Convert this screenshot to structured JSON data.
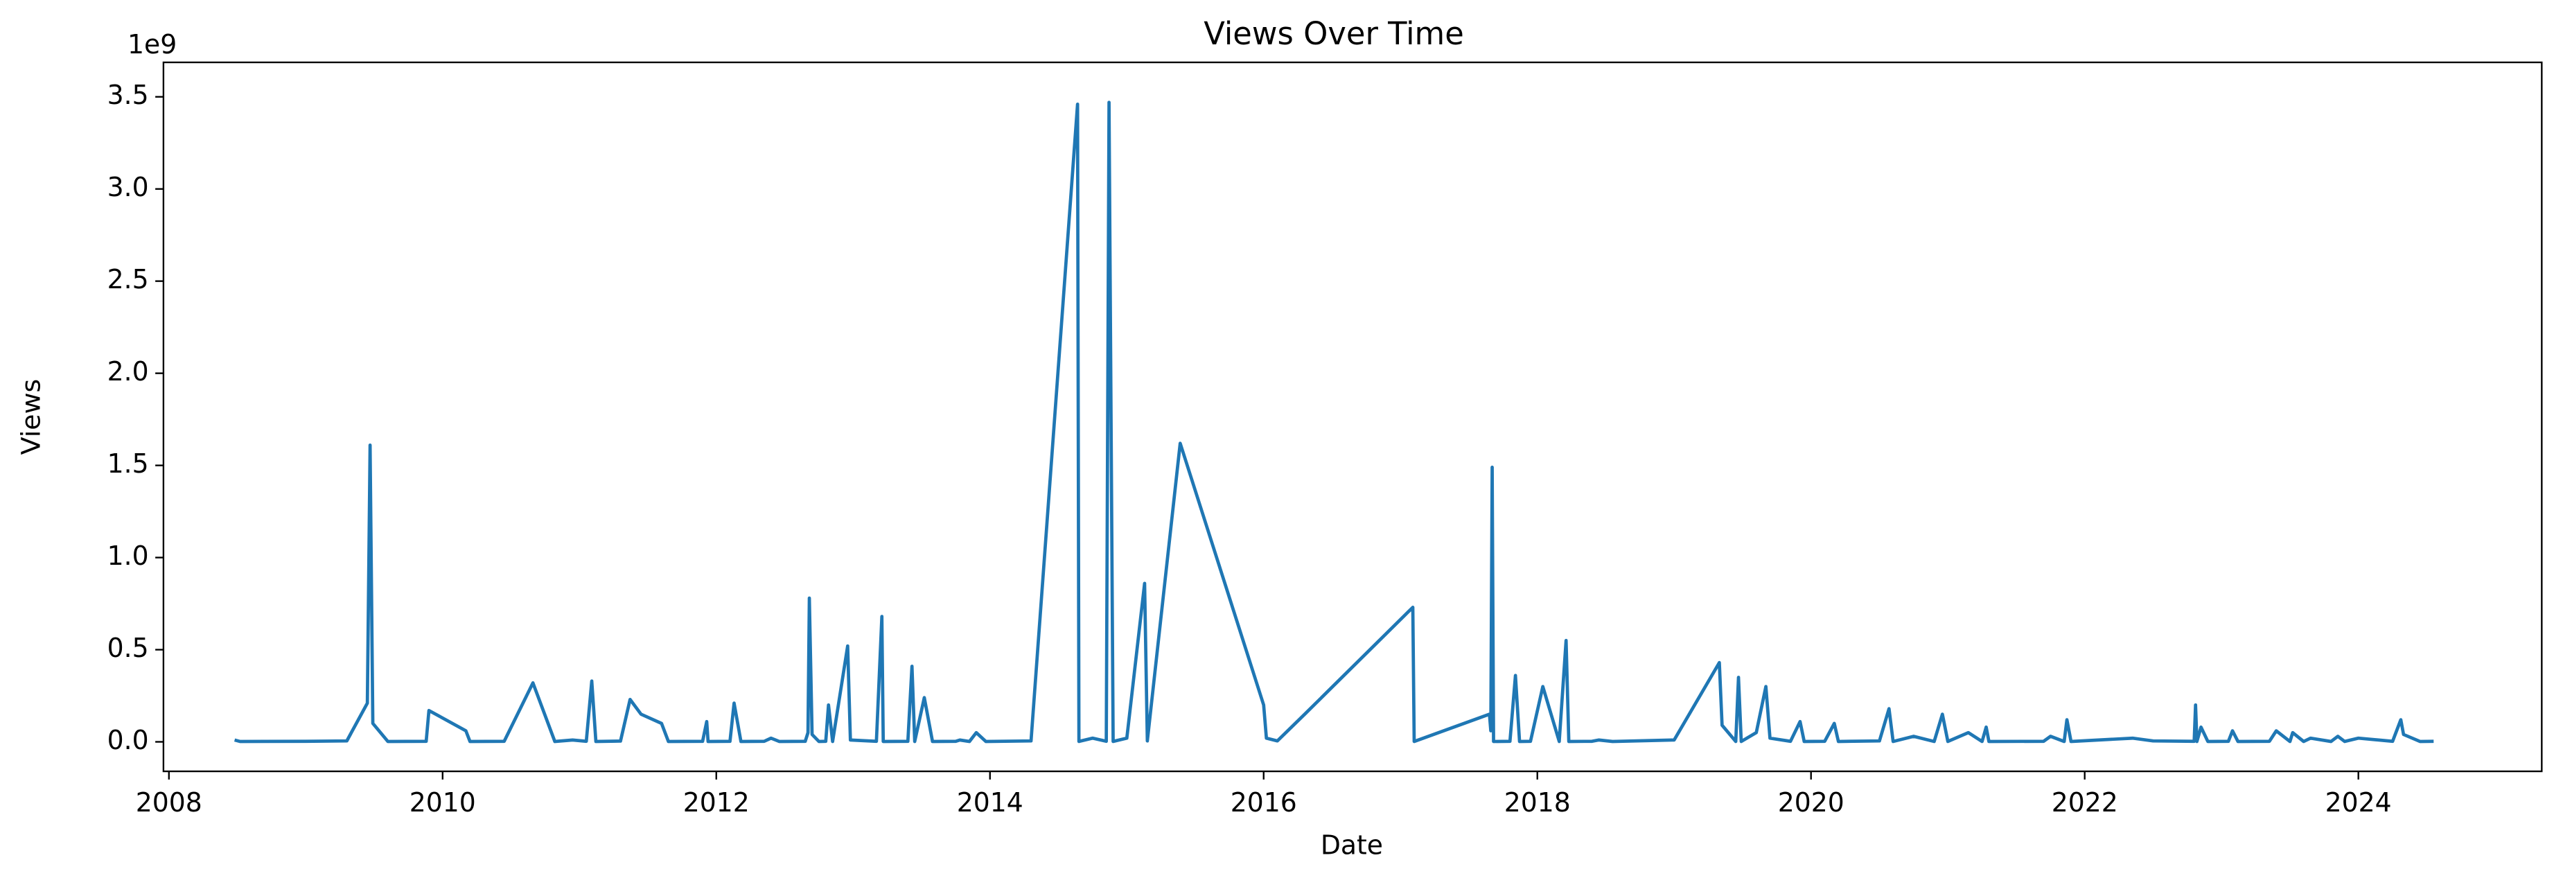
{
  "chart_data": {
    "type": "line",
    "title": "Views Over Time",
    "x_label": "Date",
    "y_label": "Views",
    "y_offset_label": "1e9",
    "color": "#1f77b4",
    "grid": false,
    "x": [
      2008.48,
      2008.52,
      2009.0,
      2009.3,
      2009.45,
      2009.47,
      2009.49,
      2009.6,
      2009.88,
      2009.9,
      2010.17,
      2010.2,
      2010.45,
      2010.66,
      2010.82,
      2010.95,
      2011.05,
      2011.09,
      2011.12,
      2011.3,
      2011.37,
      2011.45,
      2011.6,
      2011.65,
      2011.9,
      2011.93,
      2011.94,
      2012.1,
      2012.13,
      2012.18,
      2012.35,
      2012.4,
      2012.46,
      2012.65,
      2012.67,
      2012.68,
      2012.7,
      2012.75,
      2012.8,
      2012.82,
      2012.85,
      2012.96,
      2012.98,
      2013.17,
      2013.21,
      2013.22,
      2013.4,
      2013.43,
      2013.45,
      2013.52,
      2013.58,
      2013.75,
      2013.78,
      2013.85,
      2013.9,
      2013.97,
      2014.3,
      2014.64,
      2014.65,
      2014.75,
      2014.85,
      2014.87,
      2014.9,
      2015.0,
      2015.13,
      2015.15,
      2015.39,
      2016.0,
      2016.02,
      2016.1,
      2016.3,
      2017.09,
      2017.1,
      2017.65,
      2017.66,
      2017.67,
      2017.68,
      2017.8,
      2017.84,
      2017.87,
      2017.95,
      2018.04,
      2018.16,
      2018.21,
      2018.23,
      2018.4,
      2018.45,
      2018.55,
      2019.0,
      2019.33,
      2019.35,
      2019.45,
      2019.47,
      2019.49,
      2019.6,
      2019.67,
      2019.7,
      2019.85,
      2019.92,
      2019.95,
      2020.1,
      2020.17,
      2020.2,
      2020.5,
      2020.57,
      2020.6,
      2020.75,
      2020.9,
      2020.96,
      2021.0,
      2021.15,
      2021.25,
      2021.28,
      2021.3,
      2021.7,
      2021.75,
      2021.85,
      2021.87,
      2021.9,
      2022.35,
      2022.5,
      2022.8,
      2022.81,
      2022.82,
      2022.85,
      2022.9,
      2023.05,
      2023.08,
      2023.12,
      2023.35,
      2023.4,
      2023.5,
      2023.52,
      2023.6,
      2023.65,
      2023.8,
      2023.85,
      2023.9,
      2024.0,
      2024.25,
      2024.31,
      2024.33,
      2024.45,
      2024.55
    ],
    "values": [
      10000000,
      2000000,
      3000000,
      5000000,
      210000000,
      1610000000,
      100000000,
      2000000,
      3000000,
      170000000,
      60000000,
      2000000,
      3000000,
      320000000,
      2000000,
      10000000,
      3000000,
      330000000,
      2000000,
      4000000,
      230000000,
      150000000,
      100000000,
      2000000,
      3000000,
      110000000,
      2000000,
      3000000,
      210000000,
      2000000,
      3000000,
      20000000,
      2000000,
      3000000,
      50000000,
      780000000,
      40000000,
      2000000,
      3000000,
      200000000,
      2000000,
      520000000,
      10000000,
      3000000,
      680000000,
      2000000,
      3000000,
      410000000,
      2000000,
      240000000,
      2000000,
      3000000,
      10000000,
      2000000,
      50000000,
      2000000,
      5000000,
      3460000000,
      2000000,
      20000000,
      3000000,
      3470000000,
      2000000,
      20000000,
      860000000,
      5000000,
      1620000000,
      200000000,
      20000000,
      5000000,
      150000000,
      730000000,
      2000000,
      150000000,
      60000000,
      1490000000,
      2000000,
      3000000,
      360000000,
      2000000,
      3000000,
      300000000,
      2000000,
      550000000,
      2000000,
      3000000,
      10000000,
      2000000,
      10000000,
      430000000,
      90000000,
      2000000,
      350000000,
      2000000,
      50000000,
      300000000,
      20000000,
      3000000,
      110000000,
      2000000,
      3000000,
      100000000,
      2000000,
      5000000,
      180000000,
      2000000,
      30000000,
      2000000,
      150000000,
      2000000,
      50000000,
      2000000,
      80000000,
      2000000,
      3000000,
      30000000,
      2000000,
      120000000,
      2000000,
      20000000,
      5000000,
      3000000,
      200000000,
      2000000,
      80000000,
      2000000,
      3000000,
      60000000,
      2000000,
      3000000,
      60000000,
      2000000,
      50000000,
      2000000,
      20000000,
      2000000,
      30000000,
      2000000,
      20000000,
      3000000,
      120000000,
      40000000,
      2000000,
      3000000
    ],
    "xlim": [
      2007.96,
      2025.34
    ],
    "xticks": [
      2008,
      2010,
      2012,
      2014,
      2016,
      2018,
      2020,
      2022,
      2024
    ],
    "ylim": [
      -160000000,
      3687000000
    ],
    "yticks": [
      {
        "value": 0,
        "label": "0.0"
      },
      {
        "value": 500000000,
        "label": "0.5"
      },
      {
        "value": 1000000000,
        "label": "1.0"
      },
      {
        "value": 1500000000,
        "label": "1.5"
      },
      {
        "value": 2000000000,
        "label": "2.0"
      },
      {
        "value": 2500000000,
        "label": "2.5"
      },
      {
        "value": 3000000000,
        "label": "3.0"
      },
      {
        "value": 3500000000,
        "label": "3.5"
      }
    ]
  }
}
